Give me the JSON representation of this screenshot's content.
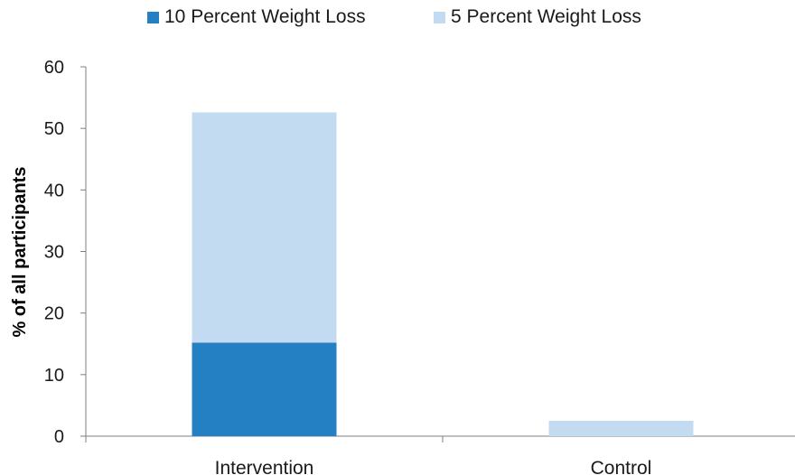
{
  "chart_data": {
    "type": "bar",
    "stacked": true,
    "categories": [
      "Intervention",
      "Control"
    ],
    "series": [
      {
        "name": "10 Percent Weight Loss",
        "color": "#2580c3",
        "values": [
          15.2,
          0
        ]
      },
      {
        "name": "5 Percent Weight Loss",
        "color": "#c3dbf0",
        "values": [
          37.4,
          2.5
        ]
      }
    ],
    "xlabel": "",
    "ylabel": "% of all participants",
    "ylim": [
      0,
      60
    ],
    "yticks": [
      0,
      10,
      20,
      30,
      40,
      50,
      60
    ],
    "grid": false,
    "legend": "top-center"
  }
}
